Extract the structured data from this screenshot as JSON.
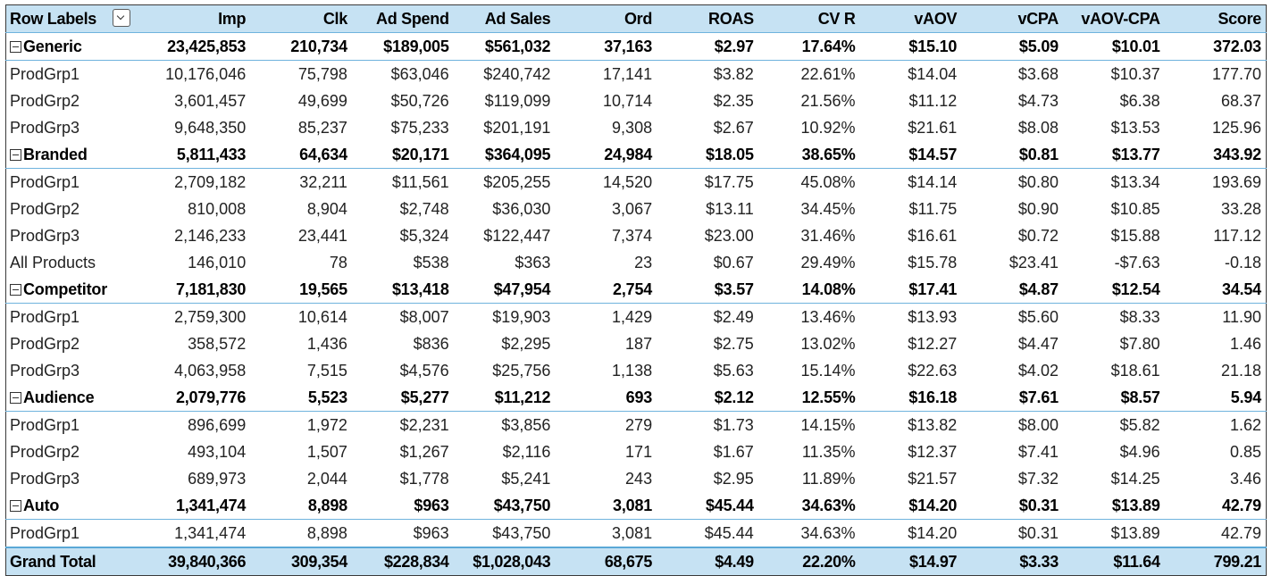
{
  "header": {
    "row_labels": "Row Labels",
    "columns": [
      "Imp",
      "Clk",
      "Ad Spend",
      "Ad Sales",
      "Ord",
      "ROAS",
      "CV R",
      "vAOV",
      "vCPA",
      "vAOV-CPA",
      "Score"
    ]
  },
  "groups": [
    {
      "label": "Generic",
      "values": [
        "23,425,853",
        "210,734",
        "$189,005",
        "$561,032",
        "37,163",
        "$2.97",
        "17.64%",
        "$15.10",
        "$5.09",
        "$10.01",
        "372.03"
      ],
      "rows": [
        {
          "label": "ProdGrp1",
          "values": [
            "10,176,046",
            "75,798",
            "$63,046",
            "$240,742",
            "17,141",
            "$3.82",
            "22.61%",
            "$14.04",
            "$3.68",
            "$10.37",
            "177.70"
          ]
        },
        {
          "label": "ProdGrp2",
          "values": [
            "3,601,457",
            "49,699",
            "$50,726",
            "$119,099",
            "10,714",
            "$2.35",
            "21.56%",
            "$11.12",
            "$4.73",
            "$6.38",
            "68.37"
          ]
        },
        {
          "label": "ProdGrp3",
          "values": [
            "9,648,350",
            "85,237",
            "$75,233",
            "$201,191",
            "9,308",
            "$2.67",
            "10.92%",
            "$21.61",
            "$8.08",
            "$13.53",
            "125.96"
          ]
        }
      ]
    },
    {
      "label": "Branded",
      "values": [
        "5,811,433",
        "64,634",
        "$20,171",
        "$364,095",
        "24,984",
        "$18.05",
        "38.65%",
        "$14.57",
        "$0.81",
        "$13.77",
        "343.92"
      ],
      "rows": [
        {
          "label": "ProdGrp1",
          "values": [
            "2,709,182",
            "32,211",
            "$11,561",
            "$205,255",
            "14,520",
            "$17.75",
            "45.08%",
            "$14.14",
            "$0.80",
            "$13.34",
            "193.69"
          ]
        },
        {
          "label": "ProdGrp2",
          "values": [
            "810,008",
            "8,904",
            "$2,748",
            "$36,030",
            "3,067",
            "$13.11",
            "34.45%",
            "$11.75",
            "$0.90",
            "$10.85",
            "33.28"
          ]
        },
        {
          "label": "ProdGrp3",
          "values": [
            "2,146,233",
            "23,441",
            "$5,324",
            "$122,447",
            "7,374",
            "$23.00",
            "31.46%",
            "$16.61",
            "$0.72",
            "$15.88",
            "117.12"
          ]
        },
        {
          "label": "All Products",
          "values": [
            "146,010",
            "78",
            "$538",
            "$363",
            "23",
            "$0.67",
            "29.49%",
            "$15.78",
            "$23.41",
            "-$7.63",
            "-0.18"
          ]
        }
      ]
    },
    {
      "label": "Competitor",
      "values": [
        "7,181,830",
        "19,565",
        "$13,418",
        "$47,954",
        "2,754",
        "$3.57",
        "14.08%",
        "$17.41",
        "$4.87",
        "$12.54",
        "34.54"
      ],
      "rows": [
        {
          "label": "ProdGrp1",
          "values": [
            "2,759,300",
            "10,614",
            "$8,007",
            "$19,903",
            "1,429",
            "$2.49",
            "13.46%",
            "$13.93",
            "$5.60",
            "$8.33",
            "11.90"
          ]
        },
        {
          "label": "ProdGrp2",
          "values": [
            "358,572",
            "1,436",
            "$836",
            "$2,295",
            "187",
            "$2.75",
            "13.02%",
            "$12.27",
            "$4.47",
            "$7.80",
            "1.46"
          ]
        },
        {
          "label": "ProdGrp3",
          "values": [
            "4,063,958",
            "7,515",
            "$4,576",
            "$25,756",
            "1,138",
            "$5.63",
            "15.14%",
            "$22.63",
            "$4.02",
            "$18.61",
            "21.18"
          ]
        }
      ]
    },
    {
      "label": "Audience",
      "values": [
        "2,079,776",
        "5,523",
        "$5,277",
        "$11,212",
        "693",
        "$2.12",
        "12.55%",
        "$16.18",
        "$7.61",
        "$8.57",
        "5.94"
      ],
      "rows": [
        {
          "label": "ProdGrp1",
          "values": [
            "896,699",
            "1,972",
            "$2,231",
            "$3,856",
            "279",
            "$1.73",
            "14.15%",
            "$13.82",
            "$8.00",
            "$5.82",
            "1.62"
          ]
        },
        {
          "label": "ProdGrp2",
          "values": [
            "493,104",
            "1,507",
            "$1,267",
            "$2,116",
            "171",
            "$1.67",
            "11.35%",
            "$12.37",
            "$7.41",
            "$4.96",
            "0.85"
          ]
        },
        {
          "label": "ProdGrp3",
          "values": [
            "689,973",
            "2,044",
            "$1,778",
            "$5,241",
            "243",
            "$2.95",
            "11.89%",
            "$21.57",
            "$7.32",
            "$14.25",
            "3.46"
          ]
        }
      ]
    },
    {
      "label": "Auto",
      "values": [
        "1,341,474",
        "8,898",
        "$963",
        "$43,750",
        "3,081",
        "$45.44",
        "34.63%",
        "$14.20",
        "$0.31",
        "$13.89",
        "42.79"
      ],
      "rows": [
        {
          "label": "ProdGrp1",
          "values": [
            "1,341,474",
            "8,898",
            "$963",
            "$43,750",
            "3,081",
            "$45.44",
            "34.63%",
            "$14.20",
            "$0.31",
            "$13.89",
            "42.79"
          ]
        }
      ]
    }
  ],
  "grand_total": {
    "label": "Grand Total",
    "values": [
      "39,840,366",
      "309,354",
      "$228,834",
      "$1,028,043",
      "68,675",
      "$4.49",
      "22.20%",
      "$14.97",
      "$3.33",
      "$11.64",
      "799.21"
    ]
  }
}
